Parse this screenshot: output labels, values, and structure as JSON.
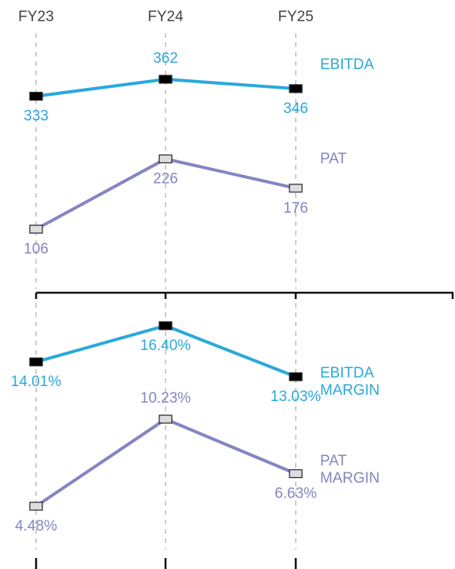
{
  "chart_data": [
    {
      "type": "line",
      "categories": [
        "FY23",
        "FY24",
        "FY25"
      ],
      "series": [
        {
          "name": "EBITDA",
          "color": "#29a9dc",
          "marker": "#000000",
          "values": [
            333,
            362,
            346
          ]
        },
        {
          "name": "PAT",
          "color": "#8585c4",
          "marker": "#dddddd",
          "values": [
            106,
            226,
            176
          ]
        }
      ]
    },
    {
      "type": "line",
      "series": [
        {
          "name": "EBITDA MARGIN",
          "color": "#29a9dc",
          "marker": "#000000",
          "values": [
            14.01,
            16.4,
            13.03
          ],
          "value_labels": [
            "14.01%",
            "16.40%",
            "13.03%"
          ]
        },
        {
          "name": "PAT MARGIN",
          "color": "#8585c4",
          "marker": "#dddddd",
          "values": [
            4.48,
            10.23,
            6.63
          ],
          "value_labels": [
            "4.48%",
            "10.23%",
            "6.63%"
          ]
        }
      ]
    }
  ]
}
